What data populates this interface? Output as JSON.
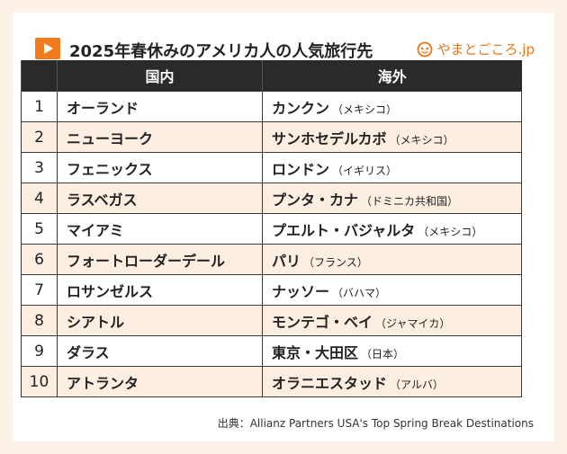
{
  "title": "2025年春休みのアメリカ人の人気旅行先",
  "brand": "やまとごころ.jp",
  "columns": {
    "domestic": "国内",
    "overseas": "海外"
  },
  "rows": [
    {
      "rank": "1",
      "domestic": "オーランド",
      "overseas": "カンクン",
      "country": "（メキシコ）"
    },
    {
      "rank": "2",
      "domestic": "ニューヨーク",
      "overseas": "サンホセデルカボ",
      "country": "（メキシコ）"
    },
    {
      "rank": "3",
      "domestic": "フェニックス",
      "overseas": "ロンドン",
      "country": "（イギリス）"
    },
    {
      "rank": "4",
      "domestic": "ラスベガス",
      "overseas": "プンタ・カナ",
      "country": "（ドミニカ共和国）"
    },
    {
      "rank": "5",
      "domestic": "マイアミ",
      "overseas": "プエルト・バジャルタ",
      "country": "（メキシコ）"
    },
    {
      "rank": "6",
      "domestic": "フォートローダーデール",
      "overseas": "パリ",
      "country": "（フランス）"
    },
    {
      "rank": "7",
      "domestic": "ロサンゼルス",
      "overseas": "ナッソー",
      "country": "（バハマ）"
    },
    {
      "rank": "8",
      "domestic": "シアトル",
      "overseas": "モンテゴ・ベイ",
      "country": "（ジャマイカ）"
    },
    {
      "rank": "9",
      "domestic": "ダラス",
      "overseas": "東京・大田区",
      "country": "（日本）"
    },
    {
      "rank": "10",
      "domestic": "アトランタ",
      "overseas": "オラニエスタッド",
      "country": "（アルバ）"
    }
  ],
  "source": "出典：Allianz Partners USA's Top Spring Break Destinations"
}
